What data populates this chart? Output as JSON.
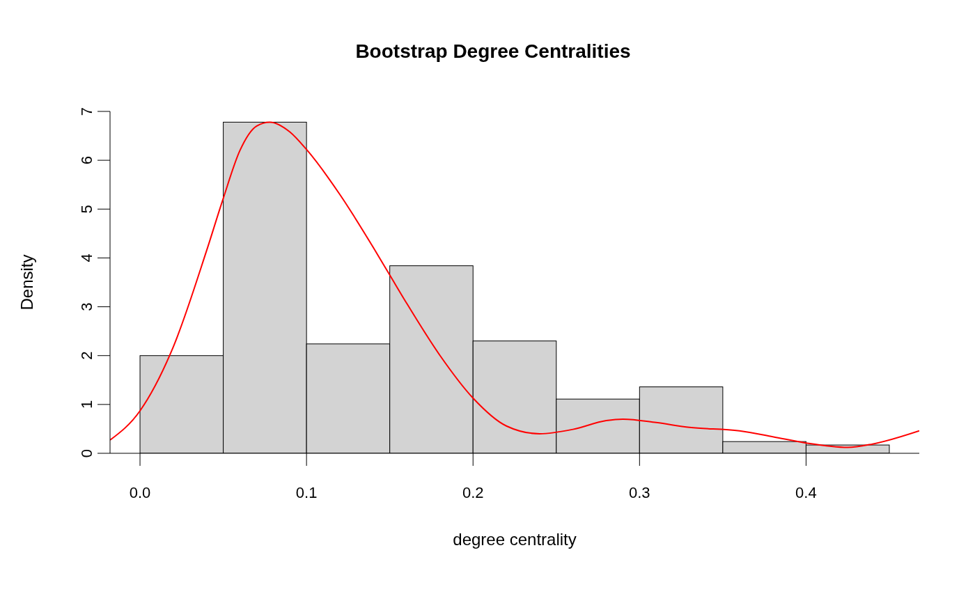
{
  "chart_data": {
    "type": "histogram",
    "title": "Bootstrap Degree Centralities",
    "xlabel": "degree centrality",
    "ylabel": "Density",
    "bins": [
      0,
      0.05,
      0.1,
      0.15,
      0.2,
      0.25,
      0.3,
      0.35,
      0.4,
      0.45
    ],
    "values": [
      2.0,
      6.78,
      2.24,
      3.84,
      2.3,
      1.11,
      1.36,
      0.24,
      0.17
    ],
    "color": "#d3d3d3",
    "series": [
      {
        "type": "line",
        "color": "#ff0000",
        "x": [
          -0.018,
          0,
          0.02,
          0.04,
          0.05,
          0.06,
          0.07,
          0.078,
          0.09,
          0.1,
          0.12,
          0.14,
          0.15,
          0.16,
          0.18,
          0.2,
          0.22,
          0.24,
          0.26,
          0.28,
          0.29,
          0.31,
          0.33,
          0.36,
          0.38,
          0.4,
          0.425,
          0.44,
          0.468
        ],
        "values": [
          0.27,
          0.87,
          2.18,
          4.15,
          5.22,
          6.2,
          6.7,
          6.78,
          6.58,
          6.22,
          5.3,
          4.22,
          3.65,
          3.08,
          2.01,
          1.13,
          0.56,
          0.4,
          0.49,
          0.67,
          0.7,
          0.63,
          0.53,
          0.46,
          0.34,
          0.21,
          0.12,
          0.19,
          0.46
        ]
      }
    ],
    "xlim": [
      -0.018,
      0.468
    ],
    "xticks": [
      {
        "value": 0,
        "label": "0.0"
      },
      0.1,
      0.2,
      0.3,
      0.4
    ],
    "ylim": [
      0,
      7
    ],
    "yticks": [
      0,
      1,
      2,
      3,
      4,
      5,
      6,
      7
    ]
  }
}
